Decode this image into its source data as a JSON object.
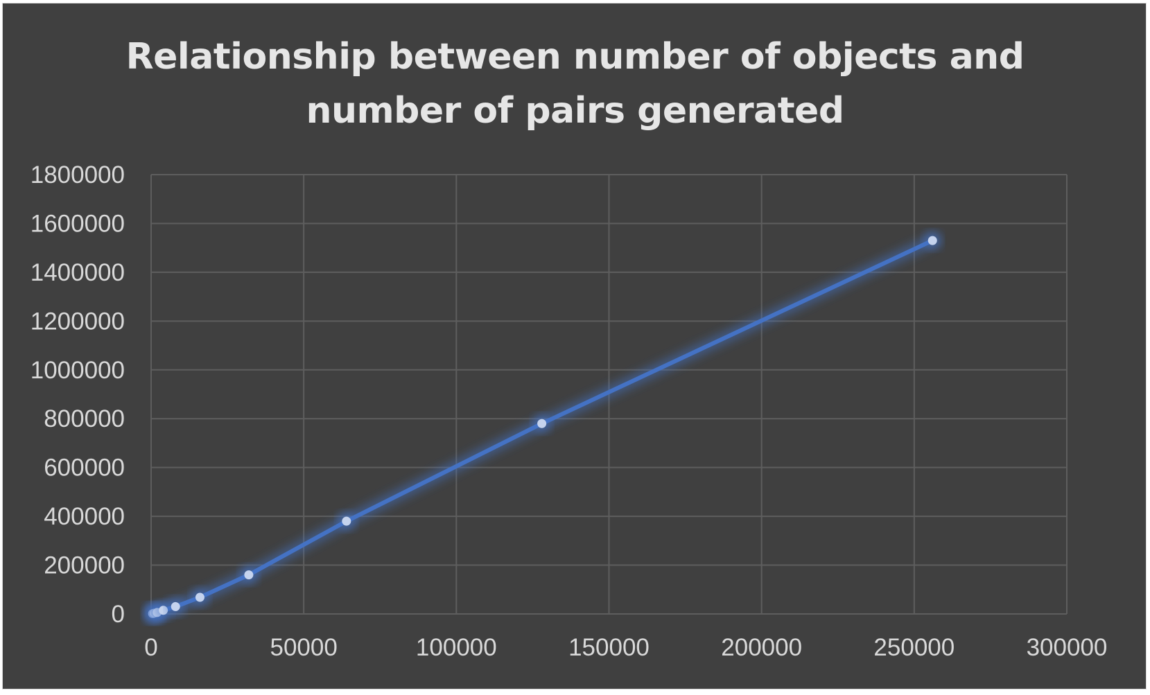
{
  "chart_data": {
    "type": "scatter",
    "title": "Relationship between number of objects and number of pairs generated",
    "title_lines": [
      "Relationship between number of objects and",
      "number of pairs generated"
    ],
    "xlabel": "",
    "ylabel": "",
    "xlim": [
      0,
      300000
    ],
    "ylim": [
      0,
      1800000
    ],
    "x_ticks": [
      "0",
      "50000",
      "100000",
      "150000",
      "200000",
      "250000",
      "300000"
    ],
    "y_ticks": [
      "0",
      "200000",
      "400000",
      "600000",
      "800000",
      "1000000",
      "1200000",
      "1400000",
      "1600000",
      "1800000"
    ],
    "grid": true,
    "legend": "none",
    "series": [
      {
        "x": [
          500,
          1000,
          2000,
          4000,
          8000,
          16000,
          32000,
          64000,
          128000,
          256000
        ],
        "y": [
          1500,
          3000,
          6000,
          15000,
          30000,
          68000,
          160000,
          380000,
          780000,
          1530000
        ],
        "color": "#4472c4",
        "marker_color": "#c5d3ee"
      }
    ]
  }
}
